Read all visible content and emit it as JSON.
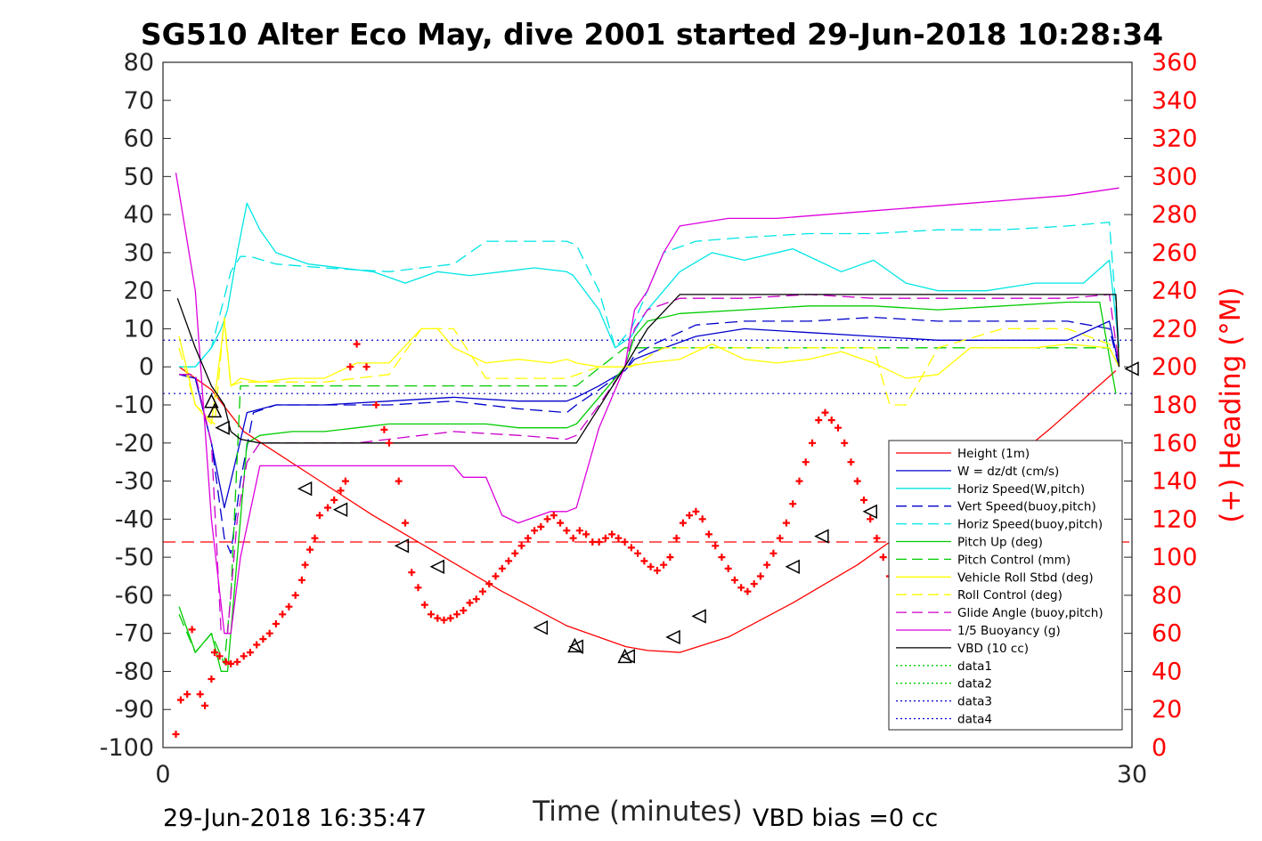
{
  "chart_data": {
    "type": "line",
    "title": "SG510 Alter Eco May, dive 2001 started 29-Jun-2018 10:28:34",
    "xlabel": "Time (minutes)",
    "ylabel_right": "(+) Heading (°M)",
    "xlim": [
      0,
      30
    ],
    "ylim": [
      -100,
      80
    ],
    "ylim_right": [
      0,
      360
    ],
    "x_ticks": [
      "0",
      "30"
    ],
    "y_ticks": [
      "80",
      "70",
      "60",
      "50",
      "40",
      "30",
      "20",
      "10",
      "0",
      "-10",
      "-20",
      "-30",
      "-40",
      "-50",
      "-60",
      "-70",
      "-80",
      "-90",
      "-100"
    ],
    "y_ticks_right": [
      "360",
      "340",
      "320",
      "300",
      "280",
      "260",
      "240",
      "220",
      "200",
      "180",
      "160",
      "140",
      "120",
      "100",
      "80",
      "60",
      "40",
      "20",
      "0"
    ],
    "grid": false,
    "legend_position": "bottom-right",
    "footer_left": "29-Jun-2018 16:35:47",
    "footer_right": "VBD bias =0 cc",
    "colors": {
      "height": "#ff0000",
      "w": "#0000cc",
      "horiz_w": "#00e5e5",
      "vert_buoy": "#0000cc",
      "horiz_buoy": "#00e5e5",
      "pitch_up": "#00cc00",
      "pitch_ctrl": "#00cc00",
      "roll": "#ffff00",
      "roll_ctrl": "#ffff00",
      "glide": "#cc00cc",
      "buoy": "#dd00dd",
      "vbd": "#000000",
      "heading": "#ff0000"
    },
    "series": [
      {
        "name": "Height (1m)",
        "style": "solid",
        "color_key": "height",
        "x": [
          0.5,
          1.5,
          2.5,
          4.5,
          6.5,
          8.5,
          10.5,
          12.5,
          14.33,
          15.0,
          16.0,
          17.5,
          19.5,
          21.5,
          23.5,
          25.5,
          27.5,
          29.5
        ],
        "y": [
          0,
          -6,
          -17,
          -28,
          -39,
          -49,
          -59,
          -68,
          -73.5,
          -74.5,
          -75,
          -71,
          -62,
          -52,
          -40,
          -30,
          -16,
          -1
        ]
      },
      {
        "name": "W = dz/dt (cm/s)",
        "style": "solid",
        "color_key": "w",
        "x": [
          0.5,
          1.0,
          1.5,
          1.9,
          2.1,
          2.6,
          3.5,
          5,
          7,
          9,
          11,
          12.5,
          12.8,
          13.5,
          14.3,
          14.6,
          15.2,
          16.5,
          18,
          20,
          22,
          24,
          26,
          28,
          29.3,
          29.6
        ],
        "y": [
          -2,
          -3,
          -20,
          -37,
          -30,
          -12,
          -10,
          -10,
          -9,
          -8,
          -9,
          -9,
          -8,
          -5,
          -1,
          2,
          4,
          8,
          10,
          9,
          8,
          7,
          7,
          7,
          12,
          0
        ]
      },
      {
        "name": "Horiz Speed(W,pitch)",
        "style": "solid",
        "color_key": "horiz_w",
        "x": [
          0.5,
          1.0,
          1.5,
          1.8,
          2.0,
          2.3,
          2.6,
          3.0,
          3.5,
          4.5,
          5.5,
          6.5,
          7.5,
          8.5,
          9.5,
          10.5,
          11.5,
          12.5,
          12.7,
          13.5,
          14.0,
          14.5,
          15.0,
          16.0,
          17.0,
          18.0,
          19.5,
          21.0,
          22.0,
          23.0,
          24.0,
          25.5,
          27.0,
          28.5,
          29.3,
          29.6
        ],
        "y": [
          0,
          0,
          5,
          10,
          15,
          30,
          43,
          36,
          30,
          27,
          26,
          25,
          22,
          25,
          24,
          25,
          26,
          25,
          24,
          15,
          5,
          8,
          15,
          25,
          30,
          28,
          31,
          25,
          28,
          22,
          20,
          20,
          22,
          22,
          28,
          5
        ]
      },
      {
        "name": "Vert Speed(buoy,pitch)",
        "style": "dashed",
        "color_key": "vert_buoy",
        "x": [
          0.5,
          1.0,
          1.5,
          1.9,
          2.1,
          2.4,
          2.8,
          3.5,
          5,
          7,
          9,
          11,
          12.5,
          12.8,
          13.5,
          14.3,
          14.6,
          15.2,
          16.5,
          18,
          20,
          22,
          24,
          26,
          28,
          29.3,
          29.6
        ],
        "y": [
          -2,
          -3,
          -20,
          -45,
          -49,
          -30,
          -12,
          -10,
          -10,
          -10,
          -9,
          -11,
          -12,
          -10,
          -6,
          -1,
          3,
          6,
          11,
          12,
          12,
          13,
          12,
          12,
          12,
          10,
          0
        ]
      },
      {
        "name": "Horiz Speed(buoy,pitch)",
        "style": "dashed",
        "color_key": "horiz_buoy",
        "x": [
          0.5,
          1.0,
          1.5,
          1.8,
          2.1,
          2.4,
          2.7,
          3.5,
          5,
          7,
          9,
          9.5,
          10,
          11,
          12.5,
          12.8,
          13.5,
          14.0,
          14.5,
          15.0,
          15.5,
          16.5,
          18,
          20,
          22,
          24,
          26,
          28,
          29.3,
          29.6
        ],
        "y": [
          0,
          0,
          5,
          15,
          25,
          29,
          29,
          27,
          26,
          25,
          27,
          30,
          33,
          33,
          33,
          32,
          20,
          5,
          10,
          20,
          30,
          33,
          34,
          35,
          35,
          36,
          36,
          37,
          38,
          5
        ]
      },
      {
        "name": "Pitch Up (deg)",
        "style": "solid",
        "color_key": "pitch_up",
        "x": [
          0.5,
          1.0,
          1.5,
          1.8,
          2.0,
          2.3,
          2.6,
          3.0,
          4,
          5,
          6,
          7,
          8,
          9,
          10,
          11,
          12.5,
          12.8,
          13.5,
          14.3,
          14.6,
          15.0,
          16,
          18,
          20,
          22,
          24,
          26,
          28,
          29.0,
          29.5
        ],
        "y": [
          -63,
          -75,
          -70,
          -80,
          -80,
          -50,
          -20,
          -18,
          -17,
          -17,
          -16,
          -15,
          -15,
          -15,
          -15,
          -16,
          -16,
          -15,
          -8,
          0,
          8,
          12,
          14,
          15,
          16,
          16,
          15,
          16,
          17,
          17,
          -7
        ]
      },
      {
        "name": "Pitch Control (mm)",
        "style": "dashed",
        "color_key": "pitch_ctrl",
        "x": [
          0.5,
          1.0,
          1.5,
          1.9,
          2.1,
          2.4,
          12.5,
          12.8,
          14.3,
          14.6,
          29.3,
          29.6
        ],
        "y": [
          -65,
          -75,
          -70,
          -78,
          -60,
          -5,
          -5,
          -5,
          5,
          5,
          5,
          0
        ]
      },
      {
        "name": "Vehicle Roll Stbd (deg)",
        "style": "solid",
        "color_key": "roll",
        "x": [
          0.5,
          1.0,
          1.5,
          1.9,
          2.1,
          2.4,
          3,
          4,
          5,
          6,
          7,
          8,
          8.5,
          9,
          10,
          11,
          12,
          12.5,
          12.8,
          13.5,
          14.3,
          15,
          16,
          17,
          18,
          19,
          20,
          21,
          22,
          23,
          24,
          25,
          26,
          27,
          28,
          29.3,
          29.6
        ],
        "y": [
          8,
          -10,
          -15,
          12,
          -5,
          -3,
          -4,
          -3,
          -3,
          1,
          1,
          10,
          10,
          5,
          1,
          2,
          1,
          2,
          1,
          0,
          0,
          1,
          2,
          6,
          2,
          1,
          2,
          4,
          1,
          -3,
          -2,
          5,
          5,
          5,
          6,
          5,
          0
        ]
      },
      {
        "name": "Roll Control (deg)",
        "style": "dashed",
        "color_key": "roll_ctrl",
        "x": [
          0.5,
          1.0,
          1.6,
          1.9,
          2.1,
          2.4,
          3,
          5,
          7,
          8,
          9,
          10,
          12,
          12.5,
          13.5,
          14.5,
          15.5,
          17,
          19,
          21,
          22,
          22.5,
          23,
          24,
          26,
          28,
          29.6
        ],
        "y": [
          5,
          -10,
          -15,
          13,
          -5,
          -4,
          -4,
          -4,
          -2,
          10,
          10,
          -3,
          -3,
          -3,
          0,
          0,
          5,
          5,
          5,
          5,
          5,
          -10,
          -10,
          5,
          10,
          10,
          5
        ]
      },
      {
        "name": "Glide Angle (buoy,pitch)",
        "style": "dashed",
        "color_key": "glide",
        "x": [
          0.5,
          1.0,
          1.5,
          1.8,
          2.0,
          2.3,
          2.6,
          3.0,
          4,
          6,
          7,
          8,
          9,
          11,
          12.5,
          12.8,
          13.5,
          14.3,
          14.6,
          15.0,
          16,
          18,
          20,
          22,
          24,
          26,
          28,
          29.3,
          29.6
        ],
        "y": [
          -2,
          -2,
          -20,
          -70,
          -70,
          -40,
          -25,
          -20,
          -20,
          -20,
          -19,
          -18,
          -17,
          -18,
          -19,
          -18,
          -10,
          0,
          10,
          15,
          18,
          18,
          19,
          18,
          18,
          18,
          18,
          19,
          0
        ]
      },
      {
        "name": "1/5 Buoyancy (g)",
        "style": "solid",
        "color_key": "buoy",
        "x": [
          0.4,
          1.0,
          1.5,
          1.9,
          2.1,
          2.4,
          3,
          5,
          7,
          8,
          9,
          9.3,
          10,
          10.5,
          11,
          12,
          12.5,
          12.8,
          13.5,
          14.3,
          14.6,
          15.0,
          15.5,
          16.0,
          17.5,
          19,
          22,
          25,
          28,
          29.6
        ],
        "y": [
          51,
          20,
          -40,
          -70,
          -70,
          -50,
          -26,
          -26,
          -26,
          -26,
          -26,
          -29,
          -29,
          -39,
          -41,
          -38,
          -38,
          -37,
          -16,
          0,
          15,
          20,
          30,
          37,
          39,
          39,
          41,
          43,
          45,
          47
        ]
      },
      {
        "name": "VBD (10 cc)",
        "style": "solid",
        "color_key": "vbd",
        "x": [
          0.45,
          1.0,
          1.5,
          1.9,
          2.1,
          2.4,
          3.0,
          4.0,
          6.0,
          8.0,
          10.0,
          12.0,
          12.8,
          14.3,
          15.0,
          16.0,
          16.5,
          18.0,
          20.0,
          24.0,
          28.0,
          29.5,
          29.6
        ],
        "y": [
          18,
          5,
          -5,
          -10,
          -17,
          -19,
          -20,
          -20,
          -20,
          -20,
          -20,
          -20,
          -20,
          0,
          10,
          19,
          19,
          19,
          19,
          19,
          19,
          19,
          0
        ]
      },
      {
        "name": "data1",
        "style": "dotted",
        "color_key": "pitch_up",
        "x": [],
        "y": []
      },
      {
        "name": "data2",
        "style": "dotted",
        "color_key": "pitch_ctrl",
        "x": [],
        "y": []
      },
      {
        "name": "data3",
        "style": "dotted",
        "color_key": "w",
        "x": [],
        "y": []
      },
      {
        "name": "data4",
        "style": "dotted",
        "color_key": "w",
        "x": [],
        "y": []
      }
    ],
    "reference_lines": [
      {
        "y": 7,
        "style": "dotted",
        "color_key": "w"
      },
      {
        "y": -7,
        "style": "dotted",
        "color_key": "w"
      },
      {
        "y": -46,
        "style": "dashed",
        "color_key": "height"
      }
    ],
    "depth_markers": [
      {
        "x": 1.5,
        "y": -9,
        "dir": "up"
      },
      {
        "x": 1.6,
        "y": -11.5,
        "dir": "up"
      },
      {
        "x": 1.85,
        "y": -16,
        "dir": "left"
      },
      {
        "x": 4.4,
        "y": -32,
        "dir": "left"
      },
      {
        "x": 5.5,
        "y": -37.5,
        "dir": "left"
      },
      {
        "x": 7.4,
        "y": -47,
        "dir": "left"
      },
      {
        "x": 8.5,
        "y": -52.5,
        "dir": "left"
      },
      {
        "x": 11.7,
        "y": -68.5,
        "dir": "left"
      },
      {
        "x": 12.8,
        "y": -73.5,
        "dir": "left"
      },
      {
        "x": 12.75,
        "y": -73.2,
        "dir": "up"
      },
      {
        "x": 14.3,
        "y": -76,
        "dir": "up"
      },
      {
        "x": 14.4,
        "y": -76,
        "dir": "left"
      },
      {
        "x": 15.8,
        "y": -71,
        "dir": "left"
      },
      {
        "x": 16.6,
        "y": -65.5,
        "dir": "left"
      },
      {
        "x": 19.5,
        "y": -52.5,
        "dir": "left"
      },
      {
        "x": 20.4,
        "y": -44.5,
        "dir": "left"
      },
      {
        "x": 21.9,
        "y": -38,
        "dir": "left"
      },
      {
        "x": 22.9,
        "y": -34.5,
        "dir": "left"
      },
      {
        "x": 30.0,
        "y": -0.5,
        "dir": "left"
      }
    ],
    "heading_series": {
      "name": "(+) Heading (°M)",
      "x": [
        0.4,
        0.55,
        0.75,
        0.9,
        1.15,
        1.3,
        1.5,
        1.6,
        1.75,
        1.95,
        2.1,
        2.3,
        2.5,
        2.7,
        2.9,
        3.1,
        3.3,
        3.5,
        3.7,
        3.9,
        4.1,
        4.3,
        4.4,
        4.55,
        4.7,
        4.85,
        5.1,
        5.3,
        5.5,
        5.65,
        5.8,
        6.0,
        6.3,
        6.6,
        6.85,
        7.0,
        7.3,
        7.5,
        7.7,
        7.9,
        8.1,
        8.3,
        8.5,
        8.7,
        8.9,
        9.1,
        9.3,
        9.5,
        9.7,
        9.9,
        10.1,
        10.3,
        10.5,
        10.7,
        10.9,
        11.1,
        11.3,
        11.5,
        11.7,
        11.9,
        12.1,
        12.3,
        12.5,
        12.7,
        12.9,
        13.1,
        13.3,
        13.5,
        13.7,
        13.9,
        14.1,
        14.3,
        14.5,
        14.7,
        14.9,
        15.1,
        15.3,
        15.5,
        15.7,
        15.9,
        16.1,
        16.3,
        16.5,
        16.7,
        16.9,
        17.1,
        17.3,
        17.5,
        17.7,
        17.9,
        18.1,
        18.3,
        18.5,
        18.7,
        18.9,
        19.1,
        19.3,
        19.5,
        19.7,
        19.9,
        20.1,
        20.3,
        20.5,
        20.7,
        20.9,
        21.1,
        21.3,
        21.5,
        21.7,
        21.9,
        22.1,
        22.3,
        22.5,
        22.7,
        22.9,
        23.1,
        23.3,
        23.5,
        23.7,
        23.9,
        24.1,
        24.3
      ],
      "y": [
        7,
        25,
        28,
        62,
        28,
        22,
        36,
        50,
        48,
        45,
        44,
        45,
        48,
        50,
        54,
        57,
        60,
        65,
        70,
        74,
        80,
        88,
        96,
        104,
        110,
        122,
        126,
        130,
        135,
        140,
        200,
        212,
        200,
        180,
        167,
        160,
        140,
        118,
        92,
        84,
        75,
        70,
        68,
        67,
        68,
        70,
        72,
        76,
        78,
        82,
        86,
        90,
        94,
        98,
        102,
        106,
        110,
        114,
        116,
        120,
        122,
        118,
        114,
        110,
        114,
        112,
        108,
        108,
        110,
        112,
        110,
        108,
        105,
        102,
        98,
        95,
        93,
        96,
        100,
        110,
        118,
        122,
        124,
        120,
        112,
        106,
        100,
        94,
        88,
        84,
        82,
        86,
        90,
        96,
        102,
        110,
        118,
        128,
        140,
        150,
        160,
        172,
        176,
        172,
        168,
        160,
        150,
        140,
        130,
        120,
        110,
        100,
        90,
        80,
        75,
        70,
        65,
        55,
        45,
        35,
        25,
        20
      ]
    }
  }
}
